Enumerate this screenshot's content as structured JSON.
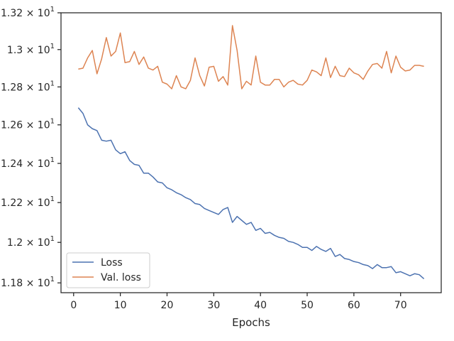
{
  "chart_data": {
    "type": "line",
    "title": "",
    "xlabel": "Epochs",
    "ylabel": "",
    "xlim": [
      -2.7,
      78.7
    ],
    "ylim": [
      11.752,
      13.2
    ],
    "yscale": "log",
    "grid": false,
    "legend_position": "lower-left",
    "x_ticks": [
      {
        "value": 0,
        "label": "0"
      },
      {
        "value": 10,
        "label": "10"
      },
      {
        "value": 20,
        "label": "20"
      },
      {
        "value": 30,
        "label": "30"
      },
      {
        "value": 40,
        "label": "40"
      },
      {
        "value": 50,
        "label": "50"
      },
      {
        "value": 60,
        "label": "60"
      },
      {
        "value": 70,
        "label": "70"
      }
    ],
    "y_ticks": [
      {
        "value": 11.8,
        "mantissa": "1.18",
        "base": "10",
        "exp": "1"
      },
      {
        "value": 12.0,
        "mantissa": "1.2",
        "base": "10",
        "exp": "1"
      },
      {
        "value": 12.2,
        "mantissa": "1.22",
        "base": "10",
        "exp": "1"
      },
      {
        "value": 12.4,
        "mantissa": "1.24",
        "base": "10",
        "exp": "1"
      },
      {
        "value": 12.6,
        "mantissa": "1.26",
        "base": "10",
        "exp": "1"
      },
      {
        "value": 12.8,
        "mantissa": "1.28",
        "base": "10",
        "exp": "1"
      },
      {
        "value": 13.0,
        "mantissa": "1.3",
        "base": "10",
        "exp": "1"
      },
      {
        "value": 13.2,
        "mantissa": "1.32",
        "base": "10",
        "exp": "1"
      }
    ],
    "x": [
      1,
      2,
      3,
      4,
      5,
      6,
      7,
      8,
      9,
      10,
      11,
      12,
      13,
      14,
      15,
      16,
      17,
      18,
      19,
      20,
      21,
      22,
      23,
      24,
      25,
      26,
      27,
      28,
      29,
      30,
      31,
      32,
      33,
      34,
      35,
      36,
      37,
      38,
      39,
      40,
      41,
      42,
      43,
      44,
      45,
      46,
      47,
      48,
      49,
      50,
      51,
      52,
      53,
      54,
      55,
      56,
      57,
      58,
      59,
      60,
      61,
      62,
      63,
      64,
      65,
      66,
      67,
      68,
      69,
      70,
      71,
      72,
      73,
      74,
      75
    ],
    "series": [
      {
        "name": "Loss",
        "color": "#4c72b0",
        "values": [
          12.69,
          12.66,
          12.6,
          12.58,
          12.57,
          12.52,
          12.515,
          12.52,
          12.47,
          12.45,
          12.46,
          12.415,
          12.395,
          12.39,
          12.35,
          12.35,
          12.33,
          12.305,
          12.3,
          12.275,
          12.265,
          12.25,
          12.24,
          12.225,
          12.215,
          12.195,
          12.19,
          12.17,
          12.16,
          12.15,
          12.14,
          12.165,
          12.175,
          12.1,
          12.13,
          12.11,
          12.09,
          12.1,
          12.06,
          12.07,
          12.045,
          12.05,
          12.035,
          12.025,
          12.02,
          12.005,
          12.0,
          11.99,
          11.975,
          11.975,
          11.96,
          11.98,
          11.965,
          11.955,
          11.97,
          11.93,
          11.94,
          11.92,
          11.915,
          11.905,
          11.9,
          11.89,
          11.885,
          11.87,
          11.89,
          11.875,
          11.875,
          11.88,
          11.85,
          11.855,
          11.845,
          11.835,
          11.845,
          11.84,
          11.82
        ]
      },
      {
        "name": "Val. loss",
        "color": "#dd8452",
        "values": [
          12.895,
          12.9,
          12.955,
          12.995,
          12.87,
          12.95,
          13.065,
          12.965,
          12.99,
          13.09,
          12.93,
          12.935,
          12.99,
          12.92,
          12.96,
          12.9,
          12.89,
          12.91,
          12.825,
          12.815,
          12.79,
          12.86,
          12.8,
          12.79,
          12.835,
          12.955,
          12.86,
          12.805,
          12.905,
          12.91,
          12.83,
          12.855,
          12.81,
          13.13,
          12.995,
          12.79,
          12.83,
          12.81,
          12.965,
          12.825,
          12.81,
          12.81,
          12.84,
          12.84,
          12.8,
          12.825,
          12.835,
          12.815,
          12.81,
          12.835,
          12.89,
          12.88,
          12.86,
          12.955,
          12.85,
          12.91,
          12.86,
          12.855,
          12.9,
          12.875,
          12.865,
          12.84,
          12.885,
          12.92,
          12.925,
          12.9,
          12.99,
          12.875,
          12.965,
          12.905,
          12.885,
          12.89,
          12.915,
          12.915,
          12.91
        ]
      }
    ]
  }
}
